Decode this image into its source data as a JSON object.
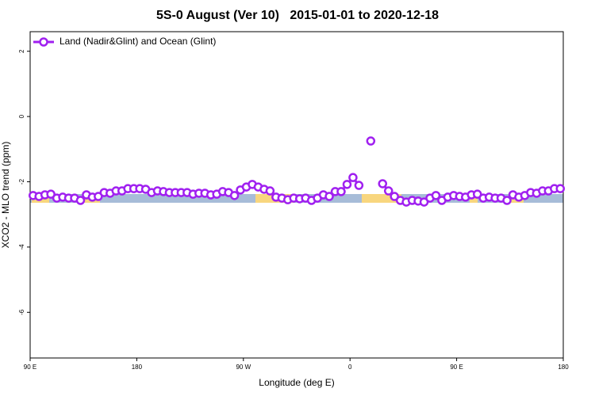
{
  "chart_data": {
    "type": "line",
    "title": "5S-0 August (Ver 10)   2015-01-01 to 2020-12-18",
    "xlabel": "Longitude (deg E)",
    "ylabel": "XCO2 - MLO trend (ppm)",
    "legend_position": "upper left",
    "xlim": [
      90,
      540
    ],
    "ylim": [
      -7.4,
      2.6
    ],
    "xticks": [
      {
        "value": 90,
        "label": "90 E"
      },
      {
        "value": 180,
        "label": "180"
      },
      {
        "value": 270,
        "label": "90 W"
      },
      {
        "value": 360,
        "label": "0"
      },
      {
        "value": 450,
        "label": "90 E"
      },
      {
        "value": 540,
        "label": "180"
      }
    ],
    "yticks": [
      2,
      0,
      -2,
      -4,
      -6
    ],
    "x": [
      92.5,
      97.5,
      102.5,
      107.5,
      112.5,
      117.5,
      122.5,
      127.5,
      132.5,
      137.5,
      142.5,
      147.5,
      152.5,
      157.5,
      162.5,
      167.5,
      172.5,
      177.5,
      182.5,
      187.5,
      192.5,
      197.5,
      202.5,
      207.5,
      212.5,
      217.5,
      222.5,
      227.5,
      232.5,
      237.5,
      242.5,
      247.5,
      252.5,
      257.5,
      262.5,
      267.5,
      272.5,
      277.5,
      282.5,
      287.5,
      292.5,
      297.5,
      302.5,
      307.5,
      312.5,
      317.5,
      322.5,
      327.5,
      332.5,
      337.5,
      342.5,
      347.5,
      352.5,
      357.5,
      362.5,
      367.5,
      372.5,
      377.5,
      382.5,
      387.5,
      392.5,
      397.5,
      402.5,
      407.5,
      412.5,
      417.5,
      422.5,
      427.5,
      432.5,
      437.5,
      442.5,
      447.5,
      452.5,
      457.5,
      462.5,
      467.5,
      472.5,
      477.5,
      482.5,
      487.5,
      492.5,
      497.5,
      502.5,
      507.5,
      512.5,
      517.5,
      522.5,
      527.5,
      532.5,
      537.5
    ],
    "series": [
      {
        "name": "Land (Nadir&Glint) and Ocean (Glint)",
        "color": "#a020f0",
        "values": [
          -2.42,
          -2.45,
          -2.4,
          -2.38,
          -2.5,
          -2.47,
          -2.5,
          -2.5,
          -2.57,
          -2.4,
          -2.47,
          -2.45,
          -2.33,
          -2.35,
          -2.28,
          -2.28,
          -2.21,
          -2.21,
          -2.21,
          -2.23,
          -2.33,
          -2.28,
          -2.3,
          -2.33,
          -2.33,
          -2.33,
          -2.33,
          -2.38,
          -2.35,
          -2.35,
          -2.4,
          -2.38,
          -2.3,
          -2.33,
          -2.42,
          -2.25,
          -2.16,
          -2.08,
          -2.16,
          -2.23,
          -2.28,
          -2.47,
          -2.5,
          -2.55,
          -2.5,
          -2.52,
          -2.5,
          -2.57,
          -2.5,
          -2.4,
          -2.45,
          -2.3,
          -2.3,
          -2.08,
          -1.87,
          -2.11,
          null,
          -0.75,
          null,
          -2.06,
          -2.28,
          -2.45,
          -2.57,
          -2.62,
          -2.57,
          -2.59,
          -2.62,
          -2.5,
          -2.42,
          -2.57,
          -2.47,
          -2.42,
          -2.45,
          -2.47,
          -2.4,
          -2.38,
          -2.5,
          -2.47,
          -2.5,
          -2.5,
          -2.57,
          -2.4,
          -2.47,
          -2.42,
          -2.33,
          -2.35,
          -2.28,
          -2.28,
          -2.21,
          -2.21
        ]
      }
    ]
  }
}
